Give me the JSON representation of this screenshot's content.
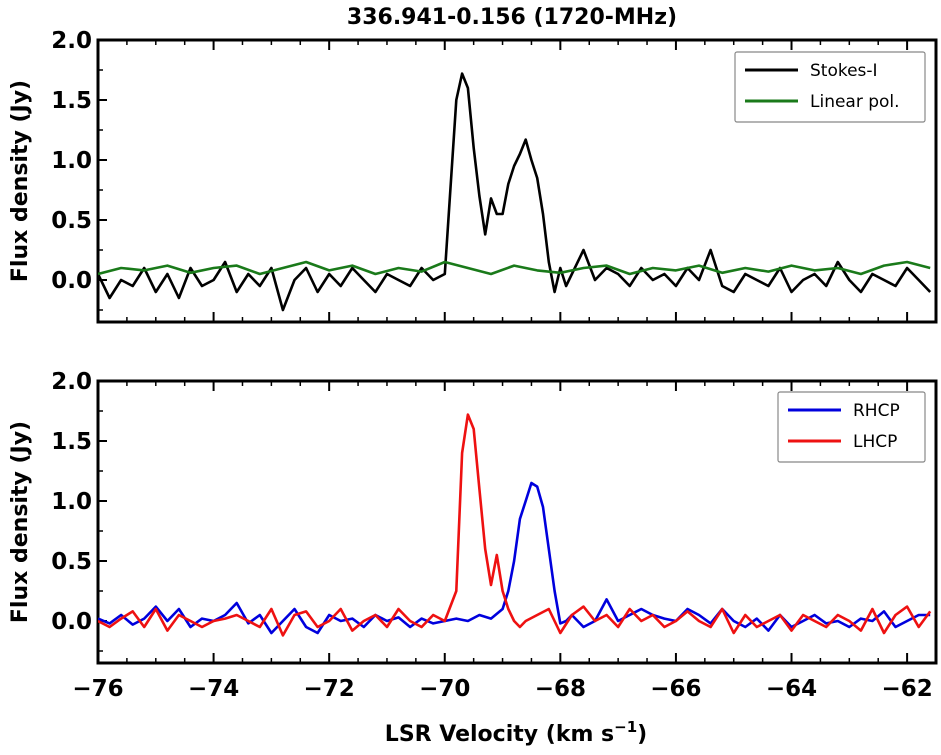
{
  "figure": {
    "title": "336.941-0.156 (1720-MHz)",
    "xlabel": "LSR Velocity (km s",
    "xlabel_sup": "−1",
    "xlabel_close": ")"
  },
  "chart_data": [
    {
      "type": "line",
      "panel": "top",
      "title": "336.941-0.156 (1720-MHz)",
      "xlabel": "",
      "ylabel": "Flux density (Jy)",
      "xlim": [
        -76.0,
        -61.5
      ],
      "ylim": [
        -0.35,
        2.0
      ],
      "xticks": [
        -76,
        -74,
        -72,
        -70,
        -68,
        -66,
        -64,
        -62
      ],
      "xtick_labels": [
        "",
        "",
        "",
        "",
        "",
        "",
        "",
        ""
      ],
      "yticks": [
        0.0,
        0.5,
        1.0,
        1.5,
        2.0
      ],
      "ytick_labels": [
        "0.0",
        "0.5",
        "1.0",
        "1.5",
        "2.0"
      ],
      "grid": false,
      "legend_position": "top-right",
      "series": [
        {
          "name": "Stokes-I",
          "color": "#000000",
          "x": [
            -76.0,
            -75.8,
            -75.6,
            -75.4,
            -75.2,
            -75.0,
            -74.8,
            -74.6,
            -74.4,
            -74.2,
            -74.0,
            -73.8,
            -73.6,
            -73.4,
            -73.2,
            -73.0,
            -72.8,
            -72.6,
            -72.4,
            -72.2,
            -72.0,
            -71.8,
            -71.6,
            -71.4,
            -71.2,
            -71.0,
            -70.8,
            -70.6,
            -70.4,
            -70.2,
            -70.0,
            -69.8,
            -69.7,
            -69.6,
            -69.5,
            -69.4,
            -69.3,
            -69.2,
            -69.1,
            -69.0,
            -68.9,
            -68.8,
            -68.7,
            -68.6,
            -68.5,
            -68.4,
            -68.3,
            -68.2,
            -68.1,
            -68.0,
            -67.9,
            -67.8,
            -67.6,
            -67.4,
            -67.2,
            -67.0,
            -66.8,
            -66.6,
            -66.4,
            -66.2,
            -66.0,
            -65.8,
            -65.6,
            -65.4,
            -65.2,
            -65.0,
            -64.8,
            -64.6,
            -64.4,
            -64.2,
            -64.0,
            -63.8,
            -63.6,
            -63.4,
            -63.2,
            -63.0,
            -62.8,
            -62.6,
            -62.4,
            -62.2,
            -62.0,
            -61.8,
            -61.6
          ],
          "y": [
            0.05,
            -0.15,
            0.0,
            -0.05,
            0.1,
            -0.1,
            0.05,
            -0.15,
            0.1,
            -0.05,
            0.0,
            0.15,
            -0.1,
            0.05,
            -0.05,
            0.1,
            -0.25,
            0.0,
            0.1,
            -0.1,
            0.05,
            -0.05,
            0.1,
            0.0,
            -0.1,
            0.05,
            0.0,
            -0.05,
            0.1,
            0.0,
            0.05,
            1.5,
            1.72,
            1.6,
            1.1,
            0.7,
            0.38,
            0.68,
            0.55,
            0.55,
            0.8,
            0.95,
            1.05,
            1.17,
            1.0,
            0.85,
            0.55,
            0.15,
            -0.1,
            0.1,
            -0.05,
            0.05,
            0.25,
            0.0,
            0.1,
            0.05,
            -0.05,
            0.1,
            0.0,
            0.05,
            -0.05,
            0.1,
            0.0,
            0.25,
            -0.05,
            -0.1,
            0.05,
            0.0,
            -0.05,
            0.1,
            -0.1,
            0.0,
            0.05,
            -0.05,
            0.15,
            0.0,
            -0.1,
            0.05,
            0.0,
            -0.05,
            0.1,
            0.0,
            -0.1
          ]
        },
        {
          "name": "Linear pol.",
          "color": "#1a7a1a",
          "x": [
            -76.0,
            -75.6,
            -75.2,
            -74.8,
            -74.4,
            -74.0,
            -73.6,
            -73.2,
            -72.8,
            -72.4,
            -72.0,
            -71.6,
            -71.2,
            -70.8,
            -70.4,
            -70.0,
            -69.6,
            -69.2,
            -68.8,
            -68.4,
            -68.0,
            -67.6,
            -67.2,
            -66.8,
            -66.4,
            -66.0,
            -65.6,
            -65.2,
            -64.8,
            -64.4,
            -64.0,
            -63.6,
            -63.2,
            -62.8,
            -62.4,
            -62.0,
            -61.6
          ],
          "y": [
            0.05,
            0.1,
            0.08,
            0.12,
            0.06,
            0.1,
            0.12,
            0.05,
            0.1,
            0.15,
            0.08,
            0.12,
            0.05,
            0.1,
            0.07,
            0.15,
            0.1,
            0.05,
            0.12,
            0.08,
            0.06,
            0.1,
            0.12,
            0.05,
            0.1,
            0.08,
            0.12,
            0.06,
            0.1,
            0.07,
            0.12,
            0.08,
            0.1,
            0.05,
            0.12,
            0.15,
            0.1
          ]
        }
      ]
    },
    {
      "type": "line",
      "panel": "bottom",
      "title": "",
      "xlabel": "LSR Velocity (km s−1)",
      "ylabel": "Flux density (Jy)",
      "xlim": [
        -76.0,
        -61.5
      ],
      "ylim": [
        -0.35,
        2.0
      ],
      "xticks": [
        -76,
        -74,
        -72,
        -70,
        -68,
        -66,
        -64,
        -62
      ],
      "xtick_labels": [
        "−76",
        "−74",
        "−72",
        "−70",
        "−68",
        "−66",
        "−64",
        "−62"
      ],
      "yticks": [
        0.0,
        0.5,
        1.0,
        1.5,
        2.0
      ],
      "ytick_labels": [
        "0.0",
        "0.5",
        "1.0",
        "1.5",
        "2.0"
      ],
      "grid": false,
      "legend_position": "top-right",
      "series": [
        {
          "name": "RHCP",
          "color": "#0000dd",
          "x": [
            -76.0,
            -75.8,
            -75.6,
            -75.4,
            -75.2,
            -75.0,
            -74.8,
            -74.6,
            -74.4,
            -74.2,
            -74.0,
            -73.8,
            -73.6,
            -73.4,
            -73.2,
            -73.0,
            -72.8,
            -72.6,
            -72.4,
            -72.2,
            -72.0,
            -71.8,
            -71.6,
            -71.4,
            -71.2,
            -71.0,
            -70.8,
            -70.6,
            -70.4,
            -70.2,
            -70.0,
            -69.8,
            -69.6,
            -69.4,
            -69.2,
            -69.0,
            -68.9,
            -68.8,
            -68.7,
            -68.6,
            -68.5,
            -68.4,
            -68.3,
            -68.2,
            -68.1,
            -68.0,
            -67.9,
            -67.8,
            -67.6,
            -67.4,
            -67.2,
            -67.0,
            -66.8,
            -66.6,
            -66.4,
            -66.2,
            -66.0,
            -65.8,
            -65.6,
            -65.4,
            -65.2,
            -65.0,
            -64.8,
            -64.6,
            -64.4,
            -64.2,
            -64.0,
            -63.8,
            -63.6,
            -63.4,
            -63.2,
            -63.0,
            -62.8,
            -62.6,
            -62.4,
            -62.2,
            -62.0,
            -61.8,
            -61.6
          ],
          "y": [
            0.02,
            -0.02,
            0.05,
            -0.03,
            0.02,
            0.12,
            0.0,
            0.1,
            -0.05,
            0.02,
            0.0,
            0.05,
            0.15,
            -0.02,
            0.05,
            -0.1,
            0.0,
            0.1,
            -0.05,
            -0.1,
            0.05,
            0.0,
            0.02,
            -0.05,
            0.05,
            0.0,
            0.03,
            -0.05,
            0.02,
            -0.02,
            0.0,
            0.02,
            0.0,
            0.05,
            0.02,
            0.1,
            0.25,
            0.5,
            0.85,
            1.0,
            1.15,
            1.12,
            0.95,
            0.6,
            0.25,
            -0.02,
            0.0,
            0.05,
            -0.05,
            0.0,
            0.18,
            0.0,
            0.05,
            0.1,
            0.05,
            0.02,
            0.0,
            0.1,
            0.05,
            -0.02,
            0.1,
            0.0,
            -0.05,
            0.02,
            -0.08,
            0.05,
            -0.05,
            0.0,
            0.05,
            -0.02,
            0.0,
            -0.05,
            0.02,
            0.0,
            0.08,
            -0.05,
            0.0,
            0.05,
            0.05
          ]
        },
        {
          "name": "LHCP",
          "color": "#ee1111",
          "x": [
            -76.0,
            -75.8,
            -75.6,
            -75.4,
            -75.2,
            -75.0,
            -74.8,
            -74.6,
            -74.4,
            -74.2,
            -74.0,
            -73.8,
            -73.6,
            -73.4,
            -73.2,
            -73.0,
            -72.8,
            -72.6,
            -72.4,
            -72.2,
            -72.0,
            -71.8,
            -71.6,
            -71.4,
            -71.2,
            -71.0,
            -70.8,
            -70.6,
            -70.4,
            -70.2,
            -70.0,
            -69.8,
            -69.7,
            -69.6,
            -69.5,
            -69.4,
            -69.3,
            -69.2,
            -69.1,
            -69.0,
            -68.9,
            -68.8,
            -68.7,
            -68.6,
            -68.4,
            -68.2,
            -68.0,
            -67.8,
            -67.6,
            -67.4,
            -67.2,
            -67.0,
            -66.8,
            -66.6,
            -66.4,
            -66.2,
            -66.0,
            -65.8,
            -65.6,
            -65.4,
            -65.2,
            -65.0,
            -64.8,
            -64.6,
            -64.4,
            -64.2,
            -64.0,
            -63.8,
            -63.6,
            -63.4,
            -63.2,
            -63.0,
            -62.8,
            -62.6,
            -62.4,
            -62.2,
            -62.0,
            -61.8,
            -61.6
          ],
          "y": [
            0.0,
            -0.05,
            0.02,
            0.08,
            -0.05,
            0.1,
            -0.08,
            0.05,
            0.0,
            -0.05,
            0.0,
            0.02,
            0.05,
            0.0,
            -0.05,
            0.1,
            -0.12,
            0.05,
            0.08,
            -0.05,
            0.0,
            0.1,
            -0.08,
            0.0,
            0.05,
            -0.05,
            0.1,
            0.0,
            -0.05,
            0.05,
            0.0,
            0.25,
            1.4,
            1.72,
            1.6,
            1.1,
            0.6,
            0.3,
            0.55,
            0.25,
            0.1,
            0.0,
            -0.05,
            0.0,
            0.05,
            0.1,
            -0.1,
            0.05,
            0.12,
            0.0,
            0.05,
            -0.05,
            0.1,
            0.0,
            0.05,
            -0.05,
            0.0,
            0.08,
            0.0,
            -0.05,
            0.1,
            -0.1,
            0.05,
            -0.05,
            0.0,
            0.05,
            -0.08,
            0.05,
            0.0,
            -0.05,
            0.05,
            0.0,
            -0.08,
            0.1,
            -0.1,
            0.05,
            0.12,
            -0.05,
            0.08
          ]
        }
      ]
    }
  ]
}
